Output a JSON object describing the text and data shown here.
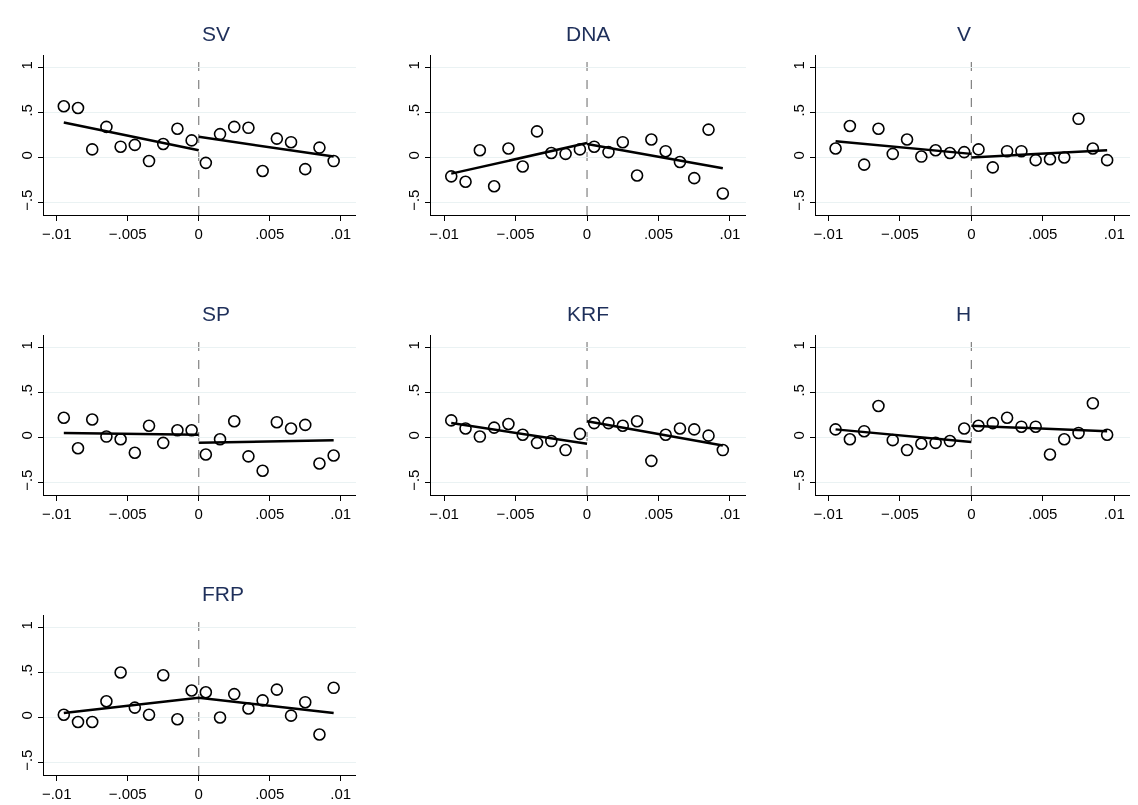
{
  "chart_data": [
    {
      "type": "scatter",
      "title": "SV",
      "x": [
        -0.0095,
        -0.0085,
        -0.0075,
        -0.0065,
        -0.0055,
        -0.0045,
        -0.0035,
        -0.0025,
        -0.0015,
        -0.0005,
        0.0005,
        0.0015,
        0.0025,
        0.0035,
        0.0045,
        0.0055,
        0.0065,
        0.0075,
        0.0085,
        0.0095
      ],
      "xlim": [
        -0.0109,
        0.0111
      ],
      "ylim": [
        -0.64,
        1.14
      ],
      "xticks": [
        {
          "value": -0.01,
          "label": "−.01"
        },
        {
          "value": -0.005,
          "label": "−.005"
        },
        {
          "value": 0,
          "label": "0"
        },
        {
          "value": 0.005,
          "label": ".005"
        },
        {
          "value": 0.01,
          "label": ".01"
        }
      ],
      "yticks": [
        {
          "value": -0.5,
          "label": "−.5"
        },
        {
          "value": 0,
          "label": "0"
        },
        {
          "value": 0.5,
          "label": ".5"
        },
        {
          "value": 1,
          "label": "1"
        }
      ],
      "grid": "y",
      "ref_lines": [
        {
          "axis": "x",
          "value": 0,
          "color": "#808080",
          "line_style": "dashed"
        }
      ],
      "series": [
        {
          "color": "#000000",
          "marker": "circle",
          "values": [
            0.57,
            0.55,
            0.09,
            0.34,
            0.12,
            0.14,
            -0.04,
            0.15,
            0.32,
            0.19,
            -0.06,
            0.26,
            0.34,
            0.33,
            -0.15,
            0.21,
            0.17,
            -0.13,
            0.11,
            -0.04
          ]
        },
        {
          "type": "line",
          "color": "#000000",
          "marker": "none",
          "x": [
            -0.0095,
            0
          ],
          "values": [
            0.39,
            0.08
          ]
        },
        {
          "type": "line",
          "color": "#000000",
          "marker": "none",
          "x": [
            0,
            0.0095
          ],
          "values": [
            0.23,
            0.01
          ]
        }
      ]
    },
    {
      "type": "scatter",
      "title": "DNA",
      "x": [
        -0.0095,
        -0.0085,
        -0.0075,
        -0.0065,
        -0.0055,
        -0.0045,
        -0.0035,
        -0.0025,
        -0.0015,
        -0.0005,
        0.0005,
        0.0015,
        0.0025,
        0.0035,
        0.0045,
        0.0055,
        0.0065,
        0.0075,
        0.0085,
        0.0095
      ],
      "xlim": [
        -0.0109,
        0.0111
      ],
      "ylim": [
        -0.64,
        1.14
      ],
      "xticks": [
        {
          "value": -0.01,
          "label": "−.01"
        },
        {
          "value": -0.005,
          "label": "−.005"
        },
        {
          "value": 0,
          "label": "0"
        },
        {
          "value": 0.005,
          "label": ".005"
        },
        {
          "value": 0.01,
          "label": ".01"
        }
      ],
      "yticks": [
        {
          "value": -0.5,
          "label": "−.5"
        },
        {
          "value": 0,
          "label": "0"
        },
        {
          "value": 0.5,
          "label": ".5"
        },
        {
          "value": 1,
          "label": "1"
        }
      ],
      "grid": "y",
      "ref_lines": [
        {
          "axis": "x",
          "value": 0,
          "color": "#808080",
          "line_style": "dashed"
        }
      ],
      "series": [
        {
          "color": "#000000",
          "marker": "circle",
          "values": [
            -0.21,
            -0.27,
            0.08,
            -0.32,
            0.1,
            -0.1,
            0.29,
            0.05,
            0.04,
            0.09,
            0.12,
            0.06,
            0.17,
            -0.2,
            0.2,
            0.07,
            -0.05,
            -0.23,
            0.31,
            -0.4
          ]
        },
        {
          "type": "line",
          "color": "#000000",
          "marker": "none",
          "x": [
            -0.0095,
            0
          ],
          "values": [
            -0.18,
            0.16
          ]
        },
        {
          "type": "line",
          "color": "#000000",
          "marker": "none",
          "x": [
            0,
            0.0095
          ],
          "values": [
            0.15,
            -0.12
          ]
        }
      ]
    },
    {
      "type": "scatter",
      "title": "V",
      "x": [
        -0.0095,
        -0.0085,
        -0.0075,
        -0.0065,
        -0.0055,
        -0.0045,
        -0.0035,
        -0.0025,
        -0.0015,
        -0.0005,
        0.0005,
        0.0015,
        0.0025,
        0.0035,
        0.0045,
        0.0055,
        0.0065,
        0.0075,
        0.0085,
        0.0095
      ],
      "xlim": [
        -0.0109,
        0.0111
      ],
      "ylim": [
        -0.64,
        1.14
      ],
      "xticks": [
        {
          "value": -0.01,
          "label": "−.01"
        },
        {
          "value": -0.005,
          "label": "−.005"
        },
        {
          "value": 0,
          "label": "0"
        },
        {
          "value": 0.005,
          "label": ".005"
        },
        {
          "value": 0.01,
          "label": ".01"
        }
      ],
      "yticks": [
        {
          "value": -0.5,
          "label": "−.5"
        },
        {
          "value": 0,
          "label": "0"
        },
        {
          "value": 0.5,
          "label": ".5"
        },
        {
          "value": 1,
          "label": "1"
        }
      ],
      "grid": "y",
      "ref_lines": [
        {
          "axis": "x",
          "value": 0,
          "color": "#808080",
          "line_style": "dashed"
        }
      ],
      "series": [
        {
          "color": "#000000",
          "marker": "circle",
          "values": [
            0.1,
            0.35,
            -0.08,
            0.32,
            0.04,
            0.2,
            0.01,
            0.08,
            0.05,
            0.06,
            0.09,
            -0.11,
            0.07,
            0.07,
            -0.03,
            -0.02,
            0.0,
            0.43,
            0.1,
            -0.03
          ]
        },
        {
          "type": "line",
          "color": "#000000",
          "marker": "none",
          "x": [
            -0.0095,
            0
          ],
          "values": [
            0.18,
            0.04
          ]
        },
        {
          "type": "line",
          "color": "#000000",
          "marker": "none",
          "x": [
            0,
            0.0095
          ],
          "values": [
            0.0,
            0.08
          ]
        }
      ]
    },
    {
      "type": "scatter",
      "title": "SP",
      "x": [
        -0.0095,
        -0.0085,
        -0.0075,
        -0.0065,
        -0.0055,
        -0.0045,
        -0.0035,
        -0.0025,
        -0.0015,
        -0.0005,
        0.0005,
        0.0015,
        0.0025,
        0.0035,
        0.0045,
        0.0055,
        0.0065,
        0.0075,
        0.0085,
        0.0095
      ],
      "xlim": [
        -0.0109,
        0.0111
      ],
      "ylim": [
        -0.64,
        1.14
      ],
      "xticks": [
        {
          "value": -0.01,
          "label": "−.01"
        },
        {
          "value": -0.005,
          "label": "−.005"
        },
        {
          "value": 0,
          "label": "0"
        },
        {
          "value": 0.005,
          "label": ".005"
        },
        {
          "value": 0.01,
          "label": ".01"
        }
      ],
      "yticks": [
        {
          "value": -0.5,
          "label": "−.5"
        },
        {
          "value": 0,
          "label": "0"
        },
        {
          "value": 0.5,
          "label": ".5"
        },
        {
          "value": 1,
          "label": "1"
        }
      ],
      "grid": "y",
      "ref_lines": [
        {
          "axis": "x",
          "value": 0,
          "color": "#808080",
          "line_style": "dashed"
        }
      ],
      "series": [
        {
          "color": "#000000",
          "marker": "circle",
          "values": [
            0.22,
            -0.12,
            0.2,
            0.01,
            -0.02,
            -0.17,
            0.13,
            -0.06,
            0.08,
            0.08,
            -0.19,
            -0.02,
            0.18,
            -0.21,
            -0.37,
            0.17,
            0.1,
            0.14,
            -0.29,
            -0.2
          ]
        },
        {
          "type": "line",
          "color": "#000000",
          "marker": "none",
          "x": [
            -0.0095,
            0
          ],
          "values": [
            0.05,
            0.03
          ]
        },
        {
          "type": "line",
          "color": "#000000",
          "marker": "none",
          "x": [
            0,
            0.0095
          ],
          "values": [
            -0.06,
            -0.03
          ]
        }
      ]
    },
    {
      "type": "scatter",
      "title": "KRF",
      "x": [
        -0.0095,
        -0.0085,
        -0.0075,
        -0.0065,
        -0.0055,
        -0.0045,
        -0.0035,
        -0.0025,
        -0.0015,
        -0.0005,
        0.0005,
        0.0015,
        0.0025,
        0.0035,
        0.0045,
        0.0055,
        0.0065,
        0.0075,
        0.0085,
        0.0095
      ],
      "xlim": [
        -0.0109,
        0.0111
      ],
      "ylim": [
        -0.64,
        1.14
      ],
      "xticks": [
        {
          "value": -0.01,
          "label": "−.01"
        },
        {
          "value": -0.005,
          "label": "−.005"
        },
        {
          "value": 0,
          "label": "0"
        },
        {
          "value": 0.005,
          "label": ".005"
        },
        {
          "value": 0.01,
          "label": ".01"
        }
      ],
      "yticks": [
        {
          "value": -0.5,
          "label": "−.5"
        },
        {
          "value": 0,
          "label": "0"
        },
        {
          "value": 0.5,
          "label": ".5"
        },
        {
          "value": 1,
          "label": "1"
        }
      ],
      "grid": "y",
      "ref_lines": [
        {
          "axis": "x",
          "value": 0,
          "color": "#808080",
          "line_style": "dashed"
        }
      ],
      "series": [
        {
          "color": "#000000",
          "marker": "circle",
          "values": [
            0.19,
            0.1,
            0.01,
            0.11,
            0.15,
            0.03,
            -0.06,
            -0.04,
            -0.14,
            0.04,
            0.16,
            0.16,
            0.13,
            0.18,
            -0.26,
            0.03,
            0.1,
            0.09,
            0.02,
            -0.14
          ]
        },
        {
          "type": "line",
          "color": "#000000",
          "marker": "none",
          "x": [
            -0.0095,
            0
          ],
          "values": [
            0.16,
            -0.07
          ]
        },
        {
          "type": "line",
          "color": "#000000",
          "marker": "none",
          "x": [
            0,
            0.0095
          ],
          "values": [
            0.18,
            -0.09
          ]
        }
      ]
    },
    {
      "type": "scatter",
      "title": "H",
      "x": [
        -0.0095,
        -0.0085,
        -0.0075,
        -0.0065,
        -0.0055,
        -0.0045,
        -0.0035,
        -0.0025,
        -0.0015,
        -0.0005,
        0.0005,
        0.0015,
        0.0025,
        0.0035,
        0.0045,
        0.0055,
        0.0065,
        0.0075,
        0.0085,
        0.0095
      ],
      "xlim": [
        -0.0109,
        0.0111
      ],
      "ylim": [
        -0.64,
        1.14
      ],
      "xticks": [
        {
          "value": -0.01,
          "label": "−.01"
        },
        {
          "value": -0.005,
          "label": "−.005"
        },
        {
          "value": 0,
          "label": "0"
        },
        {
          "value": 0.005,
          "label": ".005"
        },
        {
          "value": 0.01,
          "label": ".01"
        }
      ],
      "yticks": [
        {
          "value": -0.5,
          "label": "−.5"
        },
        {
          "value": 0,
          "label": "0"
        },
        {
          "value": 0.5,
          "label": ".5"
        },
        {
          "value": 1,
          "label": "1"
        }
      ],
      "grid": "y",
      "ref_lines": [
        {
          "axis": "x",
          "value": 0,
          "color": "#808080",
          "line_style": "dashed"
        }
      ],
      "series": [
        {
          "color": "#000000",
          "marker": "circle",
          "values": [
            0.09,
            -0.02,
            0.07,
            0.35,
            -0.03,
            -0.14,
            -0.07,
            -0.06,
            -0.04,
            0.1,
            0.13,
            0.16,
            0.22,
            0.12,
            0.12,
            -0.19,
            -0.02,
            0.05,
            0.38,
            0.03
          ]
        },
        {
          "type": "line",
          "color": "#000000",
          "marker": "none",
          "x": [
            -0.0095,
            0
          ],
          "values": [
            0.09,
            -0.05
          ]
        },
        {
          "type": "line",
          "color": "#000000",
          "marker": "none",
          "x": [
            0,
            0.0095
          ],
          "values": [
            0.13,
            0.07
          ]
        }
      ]
    },
    {
      "type": "scatter",
      "title": "FRP",
      "x": [
        -0.0095,
        -0.0085,
        -0.0075,
        -0.0065,
        -0.0055,
        -0.0045,
        -0.0035,
        -0.0025,
        -0.0015,
        -0.0005,
        0.0005,
        0.0015,
        0.0025,
        0.0035,
        0.0045,
        0.0055,
        0.0065,
        0.0075,
        0.0085,
        0.0095
      ],
      "xlim": [
        -0.0109,
        0.0111
      ],
      "ylim": [
        -0.64,
        1.14
      ],
      "xticks": [
        {
          "value": -0.01,
          "label": "−.01"
        },
        {
          "value": -0.005,
          "label": "−.005"
        },
        {
          "value": 0,
          "label": "0"
        },
        {
          "value": 0.005,
          "label": ".005"
        },
        {
          "value": 0.01,
          "label": ".01"
        }
      ],
      "yticks": [
        {
          "value": -0.5,
          "label": "−.5"
        },
        {
          "value": 0,
          "label": "0"
        },
        {
          "value": 0.5,
          "label": ".5"
        },
        {
          "value": 1,
          "label": "1"
        }
      ],
      "grid": "y",
      "ref_lines": [
        {
          "axis": "x",
          "value": 0,
          "color": "#808080",
          "line_style": "dashed"
        }
      ],
      "series": [
        {
          "color": "#000000",
          "marker": "circle",
          "values": [
            0.03,
            -0.05,
            -0.05,
            0.18,
            0.5,
            0.11,
            0.03,
            0.47,
            -0.02,
            0.3,
            0.28,
            0.0,
            0.26,
            0.1,
            0.19,
            0.31,
            0.02,
            0.17,
            -0.19,
            0.33
          ]
        },
        {
          "type": "line",
          "color": "#000000",
          "marker": "none",
          "x": [
            -0.0095,
            0,
            0.0095
          ],
          "values": [
            0.05,
            0.22,
            0.05
          ]
        }
      ]
    }
  ]
}
